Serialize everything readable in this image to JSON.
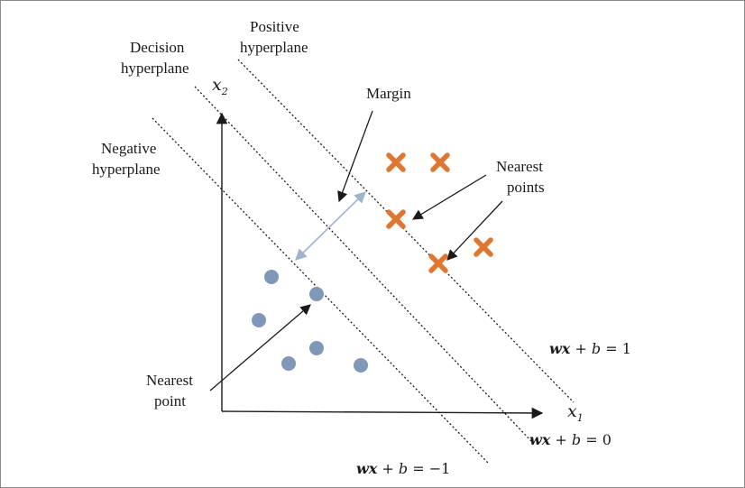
{
  "labels": {
    "positive_line1": "Positive",
    "positive_line2": "hyperplane",
    "decision_line1": "Decision",
    "decision_line2": "hyperplane",
    "negative_line1": "Negative",
    "negative_line2": "hyperplane",
    "margin": "Margin",
    "nearest_points_line1": "Nearest",
    "nearest_points_line2": "points",
    "nearest_point_line1": "Nearest",
    "nearest_point_line2": "point"
  },
  "axes": {
    "x_symbol": "x",
    "x_subscript": "1",
    "y_symbol": "x",
    "y_subscript": "2"
  },
  "equations": {
    "positive": {
      "wx": "wx",
      "rest": " + ",
      "b": "b",
      "rhs": " = 1"
    },
    "decision": {
      "wx": "wx",
      "rest": " + ",
      "b": "b",
      "rhs": " = 0"
    },
    "negative": {
      "wx": "wx",
      "rest": " + ",
      "b": "b",
      "rhs": " = −1"
    }
  },
  "colors": {
    "circle": "#7f98b8",
    "cross": "#e0762f",
    "margin_arrow": "#9fb3cc",
    "line": "#1a1a1a"
  },
  "classes": [
    {
      "name": "circle-class",
      "marker": "circle"
    },
    {
      "name": "cross-class",
      "marker": "cross"
    }
  ]
}
